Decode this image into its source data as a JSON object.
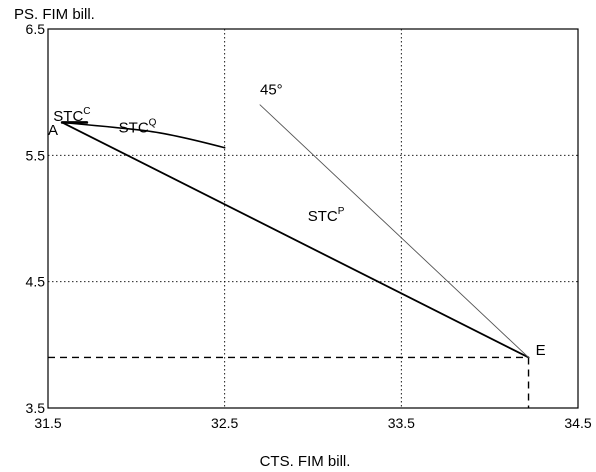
{
  "chart_data": {
    "type": "line",
    "ytitle": "PS. FIM bill.",
    "xlabel": "CTS. FIM bill.",
    "xlim": [
      31.5,
      34.5
    ],
    "ylim": [
      3.5,
      6.5
    ],
    "xticks": [
      "31.5",
      "32.5",
      "33.5",
      "34.5"
    ],
    "yticks": [
      "3.5",
      "4.5",
      "5.5",
      "6.5"
    ],
    "grid": true,
    "series": [
      {
        "name": "STC",
        "sup": "P",
        "points": [
          [
            31.58,
            5.76
          ],
          [
            34.22,
            3.9
          ]
        ]
      },
      {
        "name": "STC",
        "sup": "Q",
        "points": [
          [
            31.58,
            5.76
          ],
          [
            31.9,
            5.72
          ],
          [
            32.2,
            5.67
          ],
          [
            32.5,
            5.56
          ]
        ]
      },
      {
        "name": "STC",
        "sup": "C",
        "points": [
          [
            31.58,
            5.76
          ],
          [
            31.72,
            5.76
          ]
        ]
      },
      {
        "name": "45°",
        "points": [
          [
            32.7,
            5.9
          ],
          [
            34.22,
            3.9
          ]
        ]
      }
    ],
    "reference_lines": [
      {
        "points": [
          [
            31.5,
            3.9
          ],
          [
            34.22,
            3.9
          ]
        ]
      },
      {
        "points": [
          [
            34.22,
            3.9
          ],
          [
            34.22,
            3.5
          ]
        ]
      }
    ],
    "annotations": [
      {
        "text": "A",
        "x": 31.5,
        "y": 5.66
      },
      {
        "text": "E",
        "x": 34.26,
        "y": 3.92
      }
    ],
    "series_labels": [
      {
        "series": 2,
        "x": 31.53,
        "y": 5.77
      },
      {
        "series": 1,
        "x": 31.9,
        "y": 5.68
      },
      {
        "series": 0,
        "x": 32.97,
        "y": 4.98
      },
      {
        "series": 3,
        "x": 32.7,
        "y": 5.98
      }
    ]
  }
}
